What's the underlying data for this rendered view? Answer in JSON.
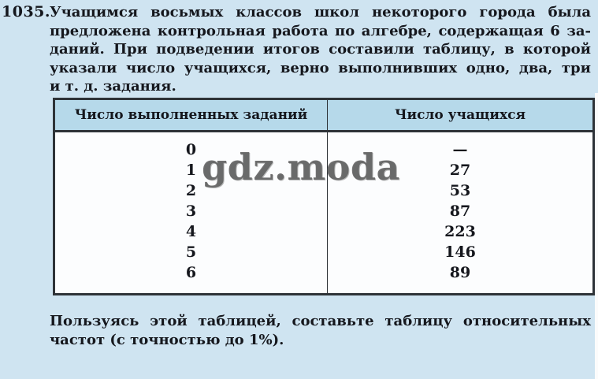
{
  "page": {
    "background_color": "#cfe4f1",
    "text_color": "#15171d"
  },
  "problem": {
    "number": "1035.",
    "text_lines": [
      "Учащимся восьмых классов школ некоторого города была",
      "предложена контрольная работа по алгебре, содержащая 6 за-",
      "даний. При подведении итогов составили таблицу, в которой",
      "указали число учащихся, верно выполнивших одно, два, три",
      "и т. д. задания."
    ]
  },
  "table": {
    "border_color": "#2e3338",
    "header_background": "#b6d9ea",
    "body_background": "#fcfdfe",
    "headers": [
      "Число выполненных заданий",
      "Число учащихся"
    ],
    "rows": [
      {
        "tasks": "0",
        "students": "—"
      },
      {
        "tasks": "1",
        "students": "27"
      },
      {
        "tasks": "2",
        "students": "53"
      },
      {
        "tasks": "3",
        "students": "87"
      },
      {
        "tasks": "4",
        "students": "223"
      },
      {
        "tasks": "5",
        "students": "146"
      },
      {
        "tasks": "6",
        "students": "89"
      }
    ]
  },
  "watermark": {
    "text": "gdz.moda",
    "color": "#5f5f5f"
  },
  "followup": {
    "text_lines": [
      "Пользуясь этой таблицей, составьте таблицу относительных",
      "частот (с точностью до 1%)."
    ]
  }
}
